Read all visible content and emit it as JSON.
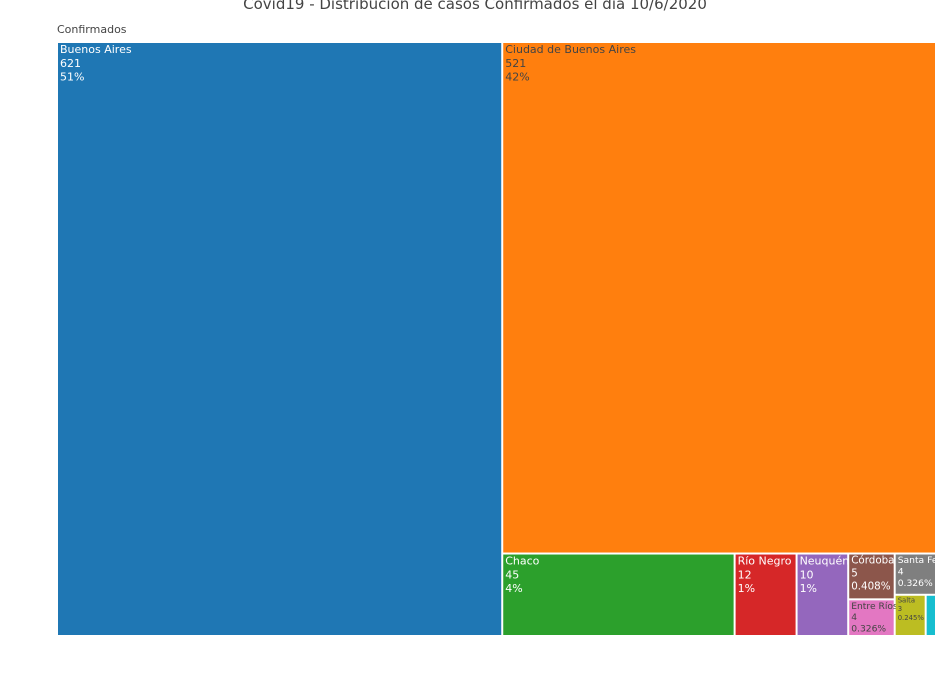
{
  "chart_data": {
    "type": "treemap",
    "title": "Covid19 - Distribución de casos Confirmados el día 10/6/2020",
    "root_label": "Confirmados",
    "categories": [
      "Buenos Aires",
      "Ciudad de Buenos Aires",
      "Chaco",
      "Río Negro",
      "Neuquén",
      "Córdoba",
      "Entre Ríos",
      "Santa Fe",
      "Salta",
      null
    ],
    "values": [
      621,
      521,
      45,
      12,
      10,
      5,
      4,
      4,
      3,
      1
    ],
    "percent_labels": [
      "51%",
      "42%",
      "4%",
      "1%",
      "1%",
      "0.408%",
      "0.326%",
      "0.326%",
      "0.245%",
      null
    ],
    "colors": [
      "#1f77b4",
      "#ff7f0e",
      "#2ca02c",
      "#d62728",
      "#9467bd",
      "#8c564b",
      "#e377c2",
      "#7f7f7f",
      "#bcbd22",
      "#17becf"
    ]
  }
}
